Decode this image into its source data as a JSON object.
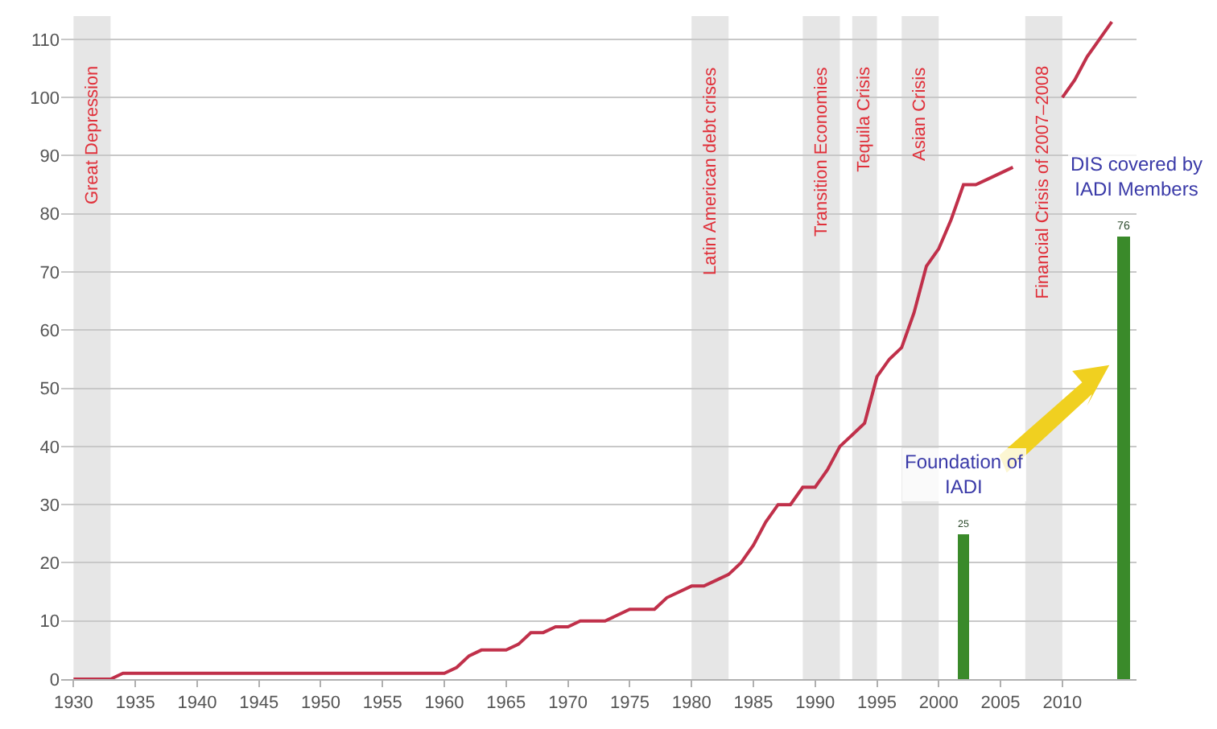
{
  "chart_data": {
    "type": "line",
    "xlim": [
      1929,
      2016
    ],
    "xticks": [
      1930,
      1935,
      1940,
      1945,
      1950,
      1955,
      1960,
      1965,
      1970,
      1975,
      1980,
      1985,
      1990,
      1995,
      2000,
      2005,
      2010
    ],
    "ylim": [
      0,
      114
    ],
    "yticks": [
      0,
      10,
      20,
      30,
      40,
      50,
      60,
      70,
      80,
      90,
      100,
      110
    ],
    "grid": "y",
    "series": [
      {
        "color": "#c0304a",
        "x": [
          1930,
          1933,
          1934,
          1960,
          1961,
          1962,
          1963,
          1965,
          1966,
          1967,
          1968,
          1969,
          1970,
          1971,
          1973,
          1974,
          1975,
          1977,
          1978,
          1980,
          1981,
          1982,
          1983,
          1984,
          1985,
          1986,
          1987,
          1988,
          1989,
          1990,
          1991,
          1992,
          1993,
          1994,
          1995,
          1996,
          1997,
          1998,
          1999,
          2000,
          2001,
          2002,
          2003,
          2004,
          2005,
          2006,
          2007,
          2008,
          2009,
          2010,
          2011,
          2012,
          2013,
          2014
        ],
        "values": [
          0,
          0,
          1,
          1,
          2,
          4,
          5,
          5,
          6,
          8,
          8,
          9,
          9,
          10,
          10,
          11,
          12,
          12,
          14,
          16,
          16,
          17,
          18,
          20,
          23,
          27,
          30,
          30,
          33,
          33,
          36,
          40,
          42,
          44,
          52,
          55,
          57,
          63,
          71,
          74,
          79,
          85,
          85,
          86,
          87,
          88,
          null,
          null,
          null,
          100,
          103,
          107,
          110,
          113
        ]
      },
      {
        "type": "bar",
        "color": "#3a8a2a",
        "x": [
          2002,
          2015
        ],
        "values": [
          25,
          76
        ],
        "value_labels": [
          "25",
          "76"
        ]
      }
    ],
    "bands": [
      {
        "axis": "x",
        "from": 1930,
        "to": 1933,
        "label": "Great Depression",
        "color": "#e6e6e6"
      },
      {
        "axis": "x",
        "from": 1980,
        "to": 1983,
        "label": "Latin American debt crises",
        "color": "#e6e6e6"
      },
      {
        "axis": "x",
        "from": 1989,
        "to": 1992,
        "label": "Transition Economies",
        "color": "#e6e6e6"
      },
      {
        "axis": "x",
        "from": 1993,
        "to": 1995,
        "label": "Tequila Crisis",
        "color": "#e6e6e6"
      },
      {
        "axis": "x",
        "from": 1997,
        "to": 2000,
        "label": "Asian Crisis",
        "color": "#e6e6e6"
      },
      {
        "axis": "x",
        "from": 2007,
        "to": 2010,
        "label": "Financial Crisis of 2007–2008",
        "color": "#e6e6e6"
      }
    ],
    "annotations": [
      {
        "text": "Foundation of IADI",
        "x": 2002,
        "y": 25
      },
      {
        "text": "DIS covered by IADI Members",
        "x": 2015,
        "y": 76
      }
    ]
  }
}
